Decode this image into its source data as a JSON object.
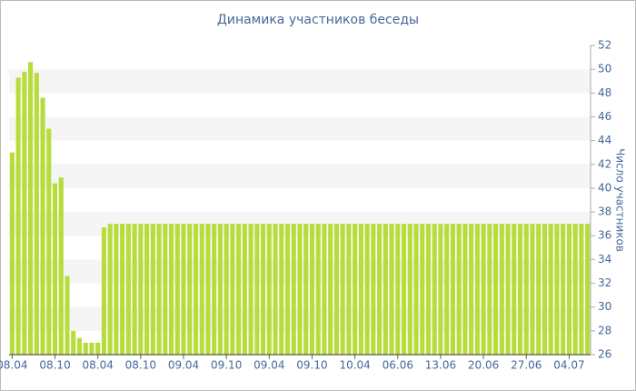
{
  "chart_data": {
    "type": "bar",
    "title": "Динамика участников беседы",
    "y_axis_label": "Число участников",
    "categories": [
      "08.04",
      null,
      null,
      null,
      null,
      null,
      null,
      "08.10",
      null,
      null,
      null,
      null,
      null,
      null,
      "08.04",
      null,
      null,
      null,
      null,
      null,
      null,
      "08.10",
      null,
      null,
      null,
      null,
      null,
      null,
      "09.04",
      null,
      null,
      null,
      null,
      null,
      null,
      "09.10",
      null,
      null,
      null,
      null,
      null,
      null,
      "09.04",
      null,
      null,
      null,
      null,
      null,
      null,
      "09.10",
      null,
      null,
      null,
      null,
      null,
      null,
      "10.04",
      null,
      null,
      null,
      null,
      null,
      null,
      "06.06",
      null,
      null,
      null,
      null,
      null,
      null,
      "13.06",
      null,
      null,
      null,
      null,
      null,
      null,
      "20.06",
      null,
      null,
      null,
      null,
      null,
      null,
      "27.06",
      null,
      null,
      null,
      null,
      null,
      null,
      "04.07",
      null,
      null,
      null
    ],
    "values": [
      43,
      49.3,
      49.8,
      50.6,
      49.7,
      47.6,
      45,
      40.4,
      40.9,
      32.6,
      28,
      27.4,
      27,
      27,
      27,
      36.7,
      37,
      37,
      37,
      37,
      37,
      37,
      37,
      37,
      37,
      37,
      37,
      37,
      37,
      37,
      37,
      37,
      37,
      37,
      37,
      37,
      37,
      37,
      37,
      37,
      37,
      37,
      37,
      37,
      37,
      37,
      37,
      37,
      37,
      37,
      37,
      37,
      37,
      37,
      37,
      37,
      37,
      37,
      37,
      37,
      37,
      37,
      37,
      37,
      37,
      37,
      37,
      37,
      37,
      37,
      37,
      37,
      37,
      37,
      37,
      37,
      37,
      37,
      37,
      37,
      37,
      37,
      37,
      37,
      37,
      37,
      37,
      37,
      37,
      37,
      37,
      37,
      37,
      37,
      37
    ],
    "color": "#b8dc3c",
    "ylim": [
      26,
      52
    ],
    "yticks": [
      26,
      28,
      30,
      32,
      34,
      36,
      38,
      40,
      42,
      44,
      46,
      48,
      50,
      52
    ],
    "y_axis_side": "right",
    "grid": "bands"
  }
}
